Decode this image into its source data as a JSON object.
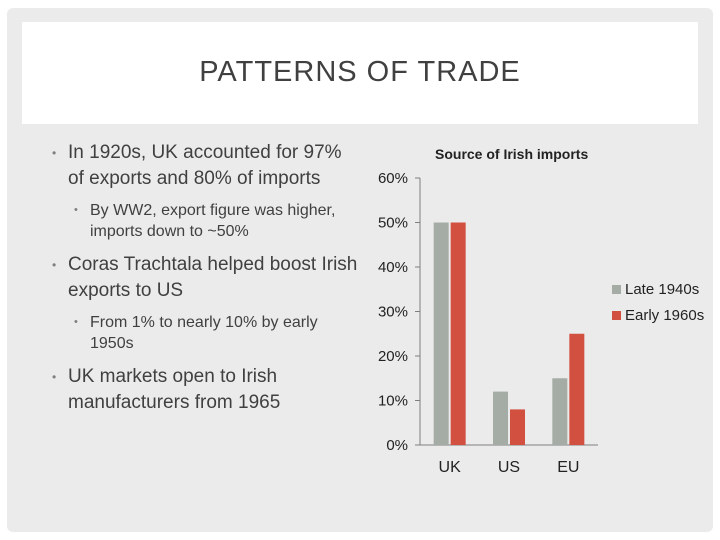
{
  "slide": {
    "title": "PATTERNS OF TRADE",
    "bullets": [
      {
        "level": 1,
        "text": "In 1920s, UK accounted for 97% of exports and 80% of imports"
      },
      {
        "level": 2,
        "text": "By WW2, export figure was higher, imports down to ~50%"
      },
      {
        "level": 1,
        "text": "Coras Trachtala helped boost Irish exports to US"
      },
      {
        "level": 2,
        "text": "From 1% to nearly 10% by early 1950s"
      },
      {
        "level": 1,
        "text": "UK markets open to Irish manufacturers from 1965"
      }
    ]
  },
  "chart_data": {
    "type": "bar",
    "title": "Source of Irish imports",
    "categories": [
      "UK",
      "US",
      "EU"
    ],
    "series": [
      {
        "name": "Late 1940s",
        "values": [
          50,
          12,
          15
        ],
        "color": "#a5aca6"
      },
      {
        "name": "Early 1960s",
        "values": [
          50,
          8,
          25
        ],
        "color": "#d2503f"
      }
    ],
    "yticks": [
      "0%",
      "10%",
      "20%",
      "30%",
      "40%",
      "50%",
      "60%"
    ],
    "ylim": [
      0,
      60
    ],
    "legend_position": "right",
    "grid": false
  }
}
